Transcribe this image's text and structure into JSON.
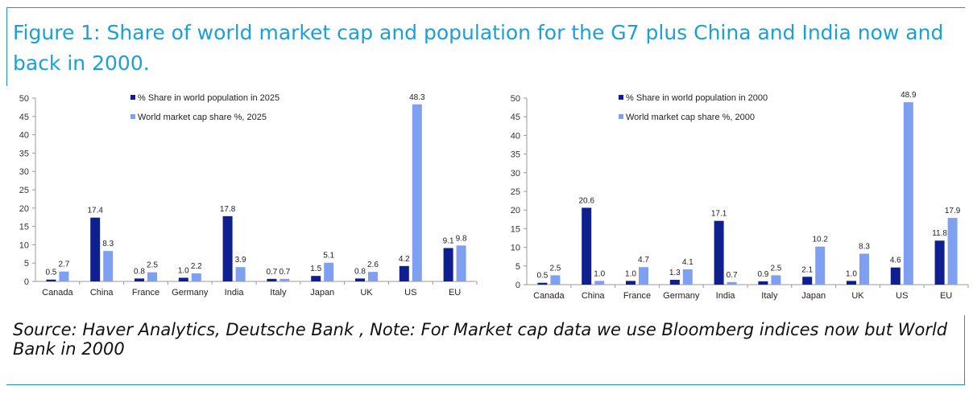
{
  "figure": {
    "title": "Figure 1: Share of world market cap and population for the G7 plus China and India now and back in 2000.",
    "source": "Source: Haver Analytics, Deutsche Bank , Note: For Market cap data we use Bloomberg indices now but World Bank in 2000"
  },
  "colors": {
    "population": "#0f1f8f",
    "marketcap": "#7f9ff0",
    "frame": "#1f93c4",
    "title": "#1aa0d6"
  },
  "chart_data": [
    {
      "type": "bar",
      "categories": [
        "Canada",
        "China",
        "France",
        "Germany",
        "India",
        "Italy",
        "Japan",
        "UK",
        "US",
        "EU"
      ],
      "series": [
        {
          "name": "% Share in world population in 2025",
          "values": [
            0.5,
            17.4,
            0.8,
            1.0,
            17.8,
            0.7,
            1.5,
            0.8,
            4.2,
            9.1
          ]
        },
        {
          "name": "World market cap share %, 2025",
          "values": [
            2.7,
            8.3,
            2.5,
            2.2,
            3.9,
            0.7,
            5.1,
            2.6,
            48.3,
            9.8
          ]
        }
      ],
      "yticks": [
        "0",
        "5",
        "10",
        "15",
        "20",
        "25",
        "30",
        "35",
        "40",
        "45",
        "50"
      ],
      "ylim": [
        0,
        50
      ],
      "legend": "top-center",
      "grid": false
    },
    {
      "type": "bar",
      "categories": [
        "Canada",
        "China",
        "France",
        "Germany",
        "India",
        "Italy",
        "Japan",
        "UK",
        "US",
        "EU"
      ],
      "series": [
        {
          "name": "% Share in world population in 2000",
          "values": [
            0.5,
            20.6,
            1.0,
            1.3,
            17.1,
            0.9,
            2.1,
            1.0,
            4.6,
            11.8
          ]
        },
        {
          "name": "World market cap share %, 2000",
          "values": [
            2.5,
            1.0,
            4.7,
            4.1,
            0.7,
            2.5,
            10.2,
            8.3,
            48.9,
            17.9
          ]
        }
      ],
      "yticks": [
        "0",
        "5",
        "10",
        "15",
        "20",
        "25",
        "30",
        "35",
        "40",
        "45",
        "50"
      ],
      "ylim": [
        0,
        50
      ],
      "legend": "top-center",
      "grid": false
    }
  ]
}
